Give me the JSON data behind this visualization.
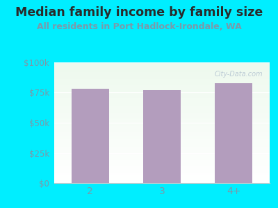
{
  "title": "Median family income by family size",
  "subtitle": "All residents in Port Hadlock-Irondale, WA",
  "categories": [
    "2",
    "3",
    "4+"
  ],
  "values": [
    78000,
    77000,
    83000
  ],
  "bar_color": "#b39dbd",
  "fig_bg_color": "#00eeff",
  "title_color": "#2a2a2a",
  "subtitle_color": "#7a9aaa",
  "tick_color": "#7a9aaa",
  "ylim": [
    0,
    100000
  ],
  "yticks": [
    0,
    25000,
    50000,
    75000,
    100000
  ],
  "ytick_labels": [
    "$0",
    "$25k",
    "$50k",
    "$75k",
    "$100k"
  ],
  "title_fontsize": 12.5,
  "subtitle_fontsize": 9,
  "watermark": "City-Data.com"
}
